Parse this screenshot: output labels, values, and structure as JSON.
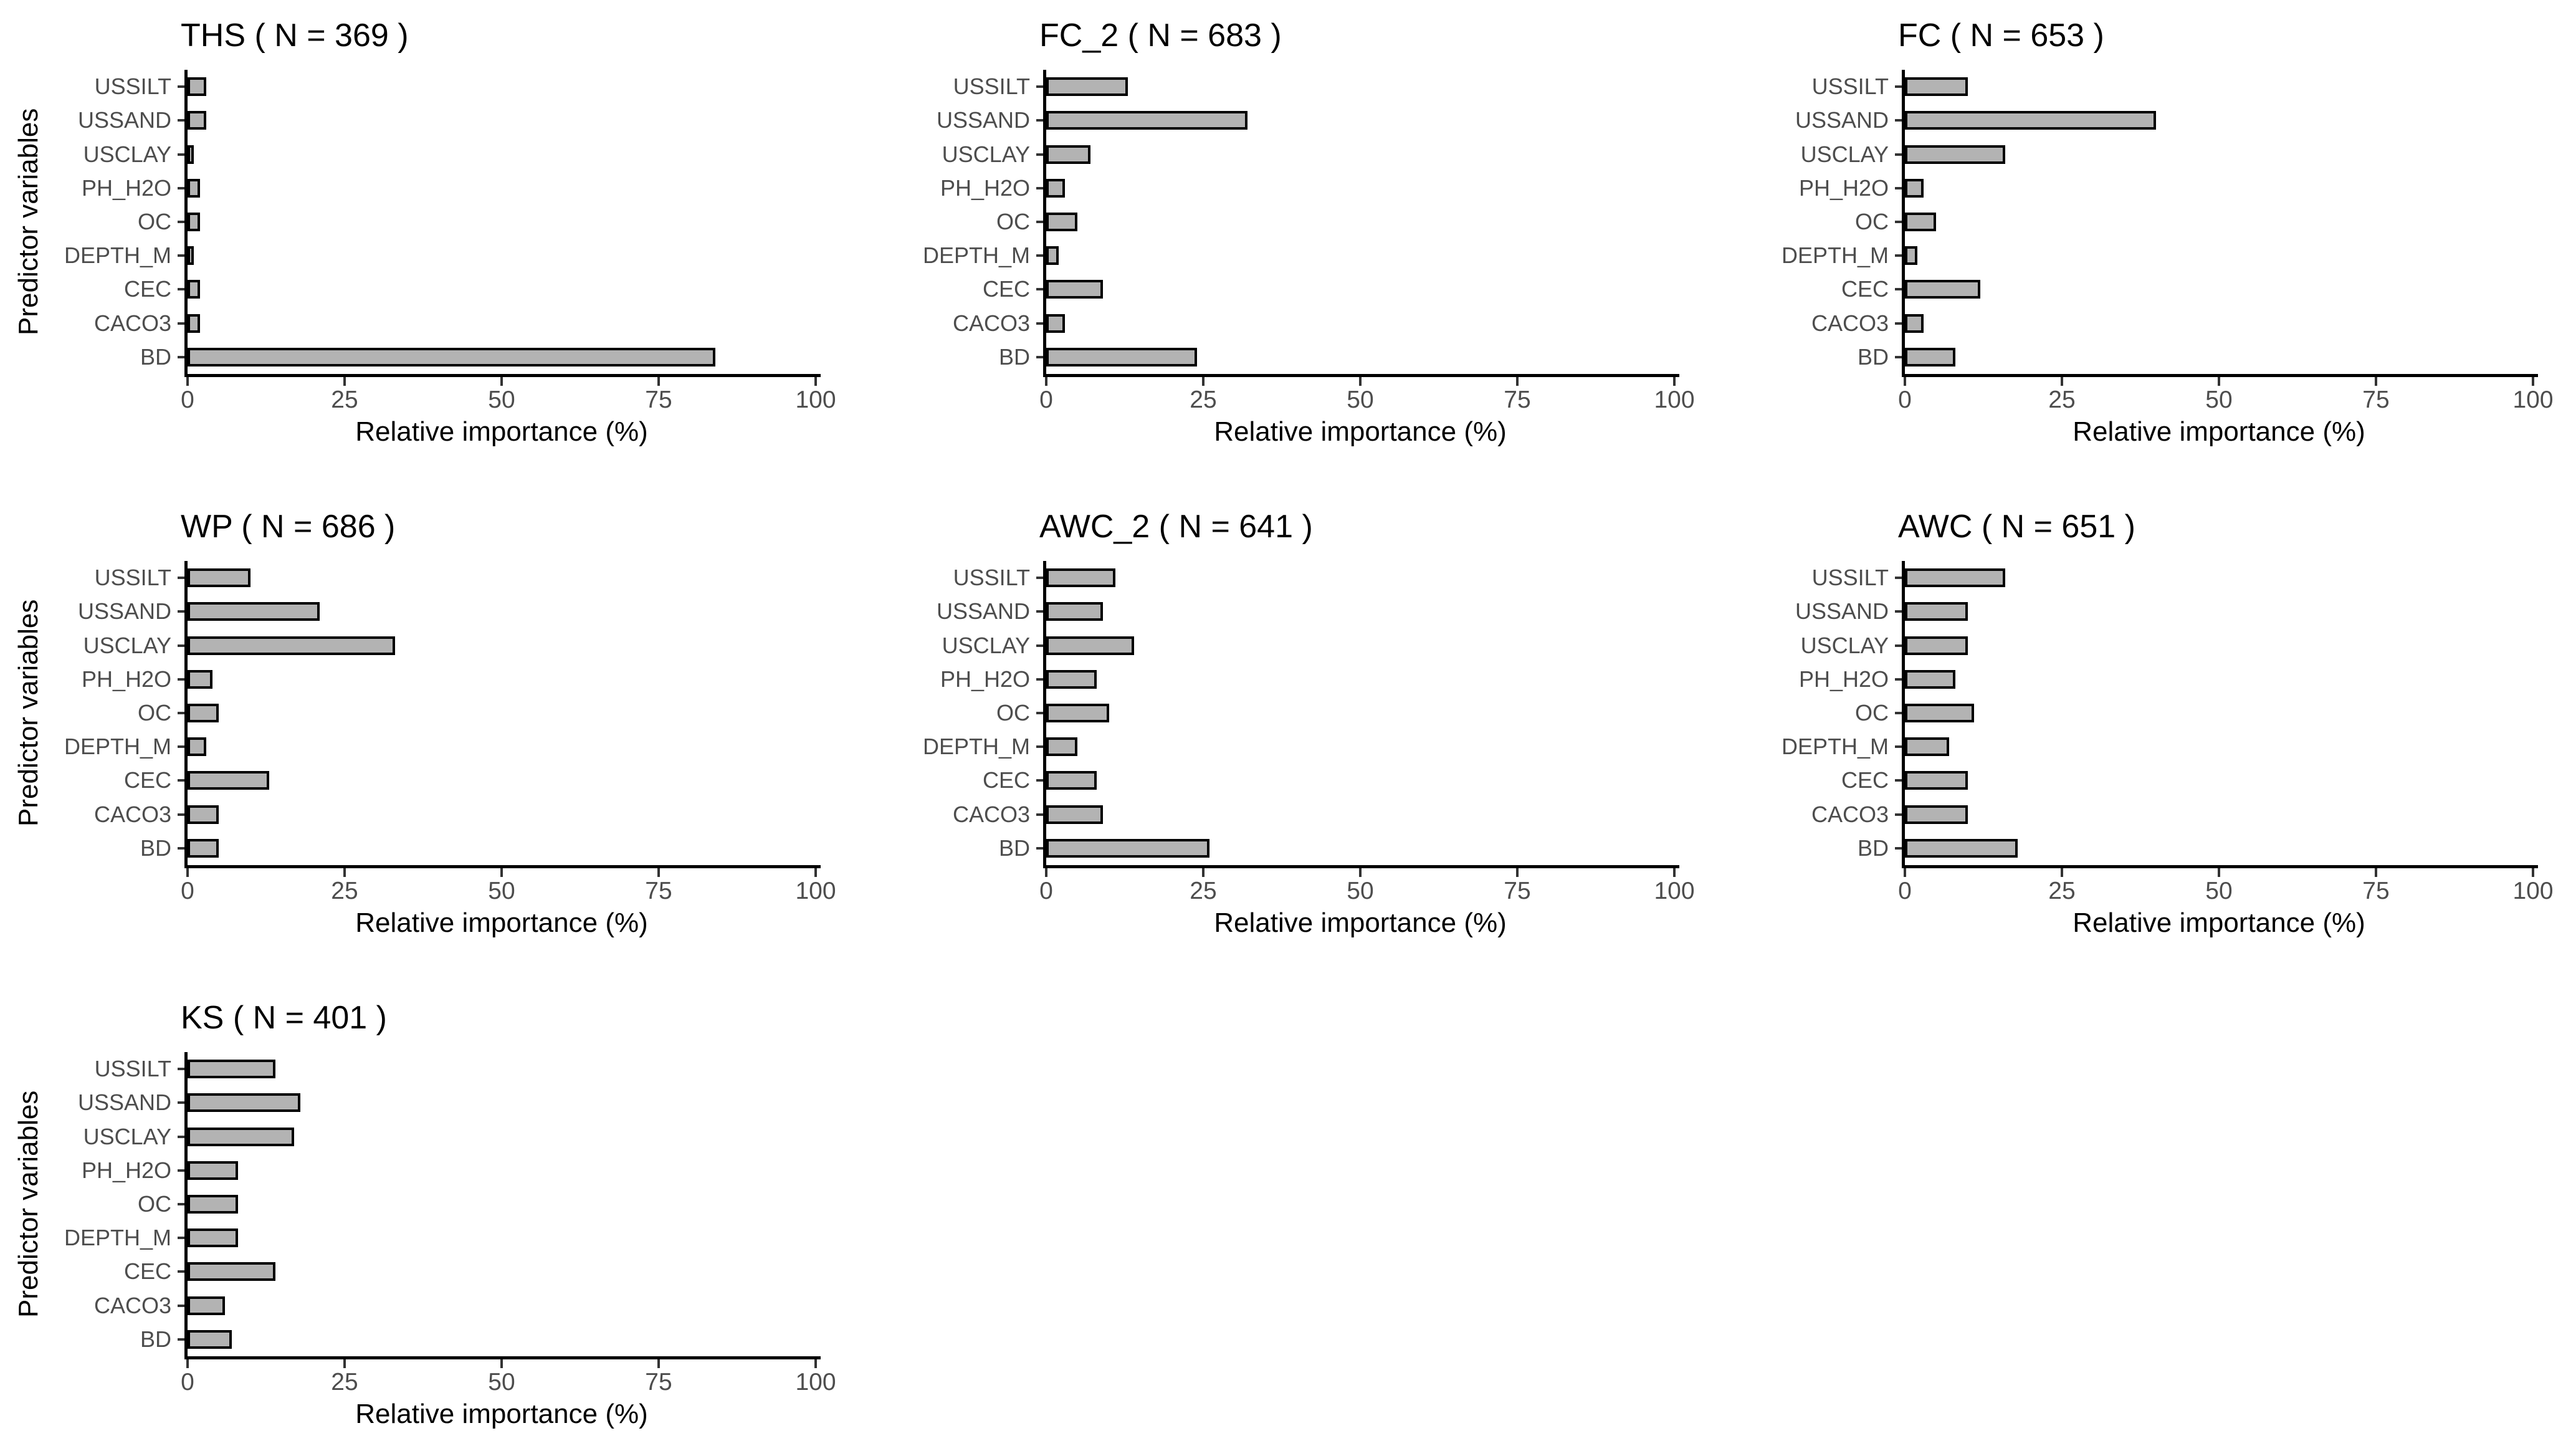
{
  "figure": {
    "background": "#ffffff",
    "xlabel": "Relative importance (%)",
    "ylabel": "Predictor variables",
    "x_ticks": [
      0,
      25,
      50,
      75,
      100
    ],
    "xlim": [
      0,
      100
    ],
    "categories": [
      "USSILT",
      "USSAND",
      "USCLAY",
      "PH_H2O",
      "OC",
      "DEPTH_M",
      "CEC",
      "CACO3",
      "BD"
    ]
  },
  "colors": {
    "bar_fill": "#b3b3b3",
    "bar_stroke": "#000000",
    "axis_line": "#000000",
    "tick_mark": "#333333",
    "tick_label": "#4d4d4d",
    "category_label": "#4d4d4d",
    "title_color": "#000000"
  },
  "chart_data": [
    {
      "type": "bar",
      "title": "THS ( N = 369 )",
      "name": "THS",
      "n": 369,
      "row": 0,
      "col": 0,
      "show_ylabel": true,
      "orientation": "horizontal",
      "xlabel": "Relative importance (%)",
      "ylabel": "Predictor variables",
      "xlim": [
        0,
        100
      ],
      "x_ticks": [
        0,
        25,
        50,
        75,
        100
      ],
      "categories": [
        "USSILT",
        "USSAND",
        "USCLAY",
        "PH_H2O",
        "OC",
        "DEPTH_M",
        "CEC",
        "CACO3",
        "BD"
      ],
      "values": [
        3,
        3,
        1,
        2,
        2,
        1,
        2,
        2,
        84
      ]
    },
    {
      "type": "bar",
      "title": "FC_2 ( N = 683 )",
      "name": "FC_2",
      "n": 683,
      "row": 0,
      "col": 1,
      "show_ylabel": false,
      "orientation": "horizontal",
      "xlabel": "Relative importance (%)",
      "xlim": [
        0,
        100
      ],
      "x_ticks": [
        0,
        25,
        50,
        75,
        100
      ],
      "categories": [
        "USSILT",
        "USSAND",
        "USCLAY",
        "PH_H2O",
        "OC",
        "DEPTH_M",
        "CEC",
        "CACO3",
        "BD"
      ],
      "values": [
        13,
        32,
        7,
        3,
        5,
        2,
        9,
        3,
        24
      ]
    },
    {
      "type": "bar",
      "title": "FC ( N = 653 )",
      "name": "FC",
      "n": 653,
      "row": 0,
      "col": 2,
      "show_ylabel": false,
      "orientation": "horizontal",
      "xlabel": "Relative importance (%)",
      "xlim": [
        0,
        100
      ],
      "x_ticks": [
        0,
        25,
        50,
        75,
        100
      ],
      "categories": [
        "USSILT",
        "USSAND",
        "USCLAY",
        "PH_H2O",
        "OC",
        "DEPTH_M",
        "CEC",
        "CACO3",
        "BD"
      ],
      "values": [
        10,
        40,
        16,
        3,
        5,
        2,
        12,
        3,
        8
      ]
    },
    {
      "type": "bar",
      "title": "WP ( N = 686 )",
      "name": "WP",
      "n": 686,
      "row": 1,
      "col": 0,
      "show_ylabel": true,
      "orientation": "horizontal",
      "xlabel": "Relative importance (%)",
      "ylabel": "Predictor variables",
      "xlim": [
        0,
        100
      ],
      "x_ticks": [
        0,
        25,
        50,
        75,
        100
      ],
      "categories": [
        "USSILT",
        "USSAND",
        "USCLAY",
        "PH_H2O",
        "OC",
        "DEPTH_M",
        "CEC",
        "CACO3",
        "BD"
      ],
      "values": [
        10,
        21,
        33,
        4,
        5,
        3,
        13,
        5,
        5
      ]
    },
    {
      "type": "bar",
      "title": "AWC_2 ( N = 641 )",
      "name": "AWC_2",
      "n": 641,
      "row": 1,
      "col": 1,
      "show_ylabel": false,
      "orientation": "horizontal",
      "xlabel": "Relative importance (%)",
      "xlim": [
        0,
        100
      ],
      "x_ticks": [
        0,
        25,
        50,
        75,
        100
      ],
      "categories": [
        "USSILT",
        "USSAND",
        "USCLAY",
        "PH_H2O",
        "OC",
        "DEPTH_M",
        "CEC",
        "CACO3",
        "BD"
      ],
      "values": [
        11,
        9,
        14,
        8,
        10,
        5,
        8,
        9,
        26
      ]
    },
    {
      "type": "bar",
      "title": "AWC ( N = 651 )",
      "name": "AWC",
      "n": 651,
      "row": 1,
      "col": 2,
      "show_ylabel": false,
      "orientation": "horizontal",
      "xlabel": "Relative importance (%)",
      "xlim": [
        0,
        100
      ],
      "x_ticks": [
        0,
        25,
        50,
        75,
        100
      ],
      "categories": [
        "USSILT",
        "USSAND",
        "USCLAY",
        "PH_H2O",
        "OC",
        "DEPTH_M",
        "CEC",
        "CACO3",
        "BD"
      ],
      "values": [
        16,
        10,
        10,
        8,
        11,
        7,
        10,
        10,
        18
      ]
    },
    {
      "type": "bar",
      "title": "KS ( N = 401 )",
      "name": "KS",
      "n": 401,
      "row": 2,
      "col": 0,
      "show_ylabel": true,
      "orientation": "horizontal",
      "xlabel": "Relative importance (%)",
      "ylabel": "Predictor variables",
      "xlim": [
        0,
        100
      ],
      "x_ticks": [
        0,
        25,
        50,
        75,
        100
      ],
      "categories": [
        "USSILT",
        "USSAND",
        "USCLAY",
        "PH_H2O",
        "OC",
        "DEPTH_M",
        "CEC",
        "CACO3",
        "BD"
      ],
      "values": [
        14,
        18,
        17,
        8,
        8,
        8,
        14,
        6,
        7
      ]
    }
  ]
}
